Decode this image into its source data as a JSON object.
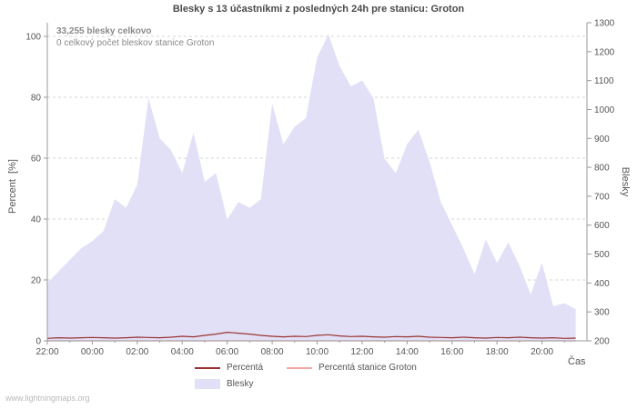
{
  "header": {
    "title": "Blesky s 13 účastníkmi z posledných 24h pre stanicu: Groton"
  },
  "annotations": {
    "total": "33,255 blesky celkovo",
    "station": "0 celkový počet bleskov stanice Groton"
  },
  "axes": {
    "left_label": "Percent  [%]",
    "right_label": "Blesky",
    "x_label": "Čas"
  },
  "legend": {
    "percenta": "Percentá",
    "percenta_station": "Percentá stanice Groton",
    "blesky": "Blesky"
  },
  "footer": {
    "watermark": "www.lightningmaps.org"
  },
  "colors": {
    "area_fill": "#e2e0f6",
    "percenta_line": "#993333",
    "percenta_station_line": "#f5a8a8",
    "grid": "#d4d4d4",
    "axis": "#999999"
  },
  "chart_data": {
    "type": "area",
    "title": "Blesky s 13 účastníkmi z posledných 24h pre stanicu: Groton",
    "xlabel": "Čas",
    "ylabel_left": "Percent [%]",
    "ylabel_right": "Blesky",
    "ylim_left": [
      0,
      100
    ],
    "ylim_right": [
      200,
      1300
    ],
    "grid": true,
    "legend_position": "bottom",
    "x_start_hour": 0,
    "x_step_hours": 0.5,
    "x_tick_hours": [
      0,
      2,
      4,
      6,
      8,
      10,
      12,
      14,
      16,
      18,
      20,
      22
    ],
    "x_tick_labels": [
      "22:00",
      "00:00",
      "02:00",
      "04:00",
      "06:00",
      "08:00",
      "10:00",
      "12:00",
      "14:00",
      "16:00",
      "18:00",
      "20:00"
    ],
    "left_ticks": [
      0,
      20,
      40,
      60,
      80,
      100
    ],
    "right_ticks": [
      200,
      300,
      400,
      500,
      600,
      700,
      800,
      900,
      1000,
      1100,
      1200,
      1300
    ],
    "series": [
      {
        "name": "Blesky",
        "type": "area",
        "axis": "right",
        "color": "#e2e0f6",
        "values": [
          400,
          440,
          480,
          520,
          545,
          580,
          690,
          660,
          740,
          1040,
          900,
          860,
          780,
          920,
          750,
          780,
          620,
          680,
          660,
          690,
          1020,
          880,
          940,
          970,
          1180,
          1260,
          1150,
          1080,
          1100,
          1040,
          830,
          780,
          880,
          930,
          820,
          680,
          600,
          520,
          430,
          550,
          470,
          540,
          460,
          360,
          470,
          320,
          330,
          310
        ]
      },
      {
        "name": "Percentá",
        "type": "line",
        "axis": "left",
        "color": "#993333",
        "values": [
          0.8,
          1,
          0.9,
          1,
          1.1,
          1,
          0.9,
          1,
          1.2,
          1.1,
          1,
          1.2,
          1.5,
          1.3,
          1.8,
          2.2,
          2.8,
          2.5,
          2.2,
          1.8,
          1.5,
          1.3,
          1.5,
          1.4,
          1.8,
          2,
          1.6,
          1.4,
          1.5,
          1.3,
          1.2,
          1.4,
          1.3,
          1.5,
          1.2,
          1.1,
          1,
          1.2,
          1,
          0.9,
          1.1,
          1,
          1.2,
          1,
          0.9,
          1,
          0.8,
          0.9
        ]
      },
      {
        "name": "Percentá stanice Groton",
        "type": "line",
        "axis": "left",
        "color": "#f5a8a8",
        "values": [
          0,
          0,
          0,
          0,
          0,
          0,
          0,
          0,
          0,
          0,
          0,
          0,
          0,
          0,
          0,
          0,
          0,
          0,
          0,
          0,
          0,
          0,
          0,
          0,
          0,
          0,
          0,
          0,
          0,
          0,
          0,
          0,
          0,
          0,
          0,
          0,
          0,
          0,
          0,
          0,
          0,
          0,
          0,
          0,
          0,
          0,
          0,
          0
        ]
      }
    ]
  }
}
